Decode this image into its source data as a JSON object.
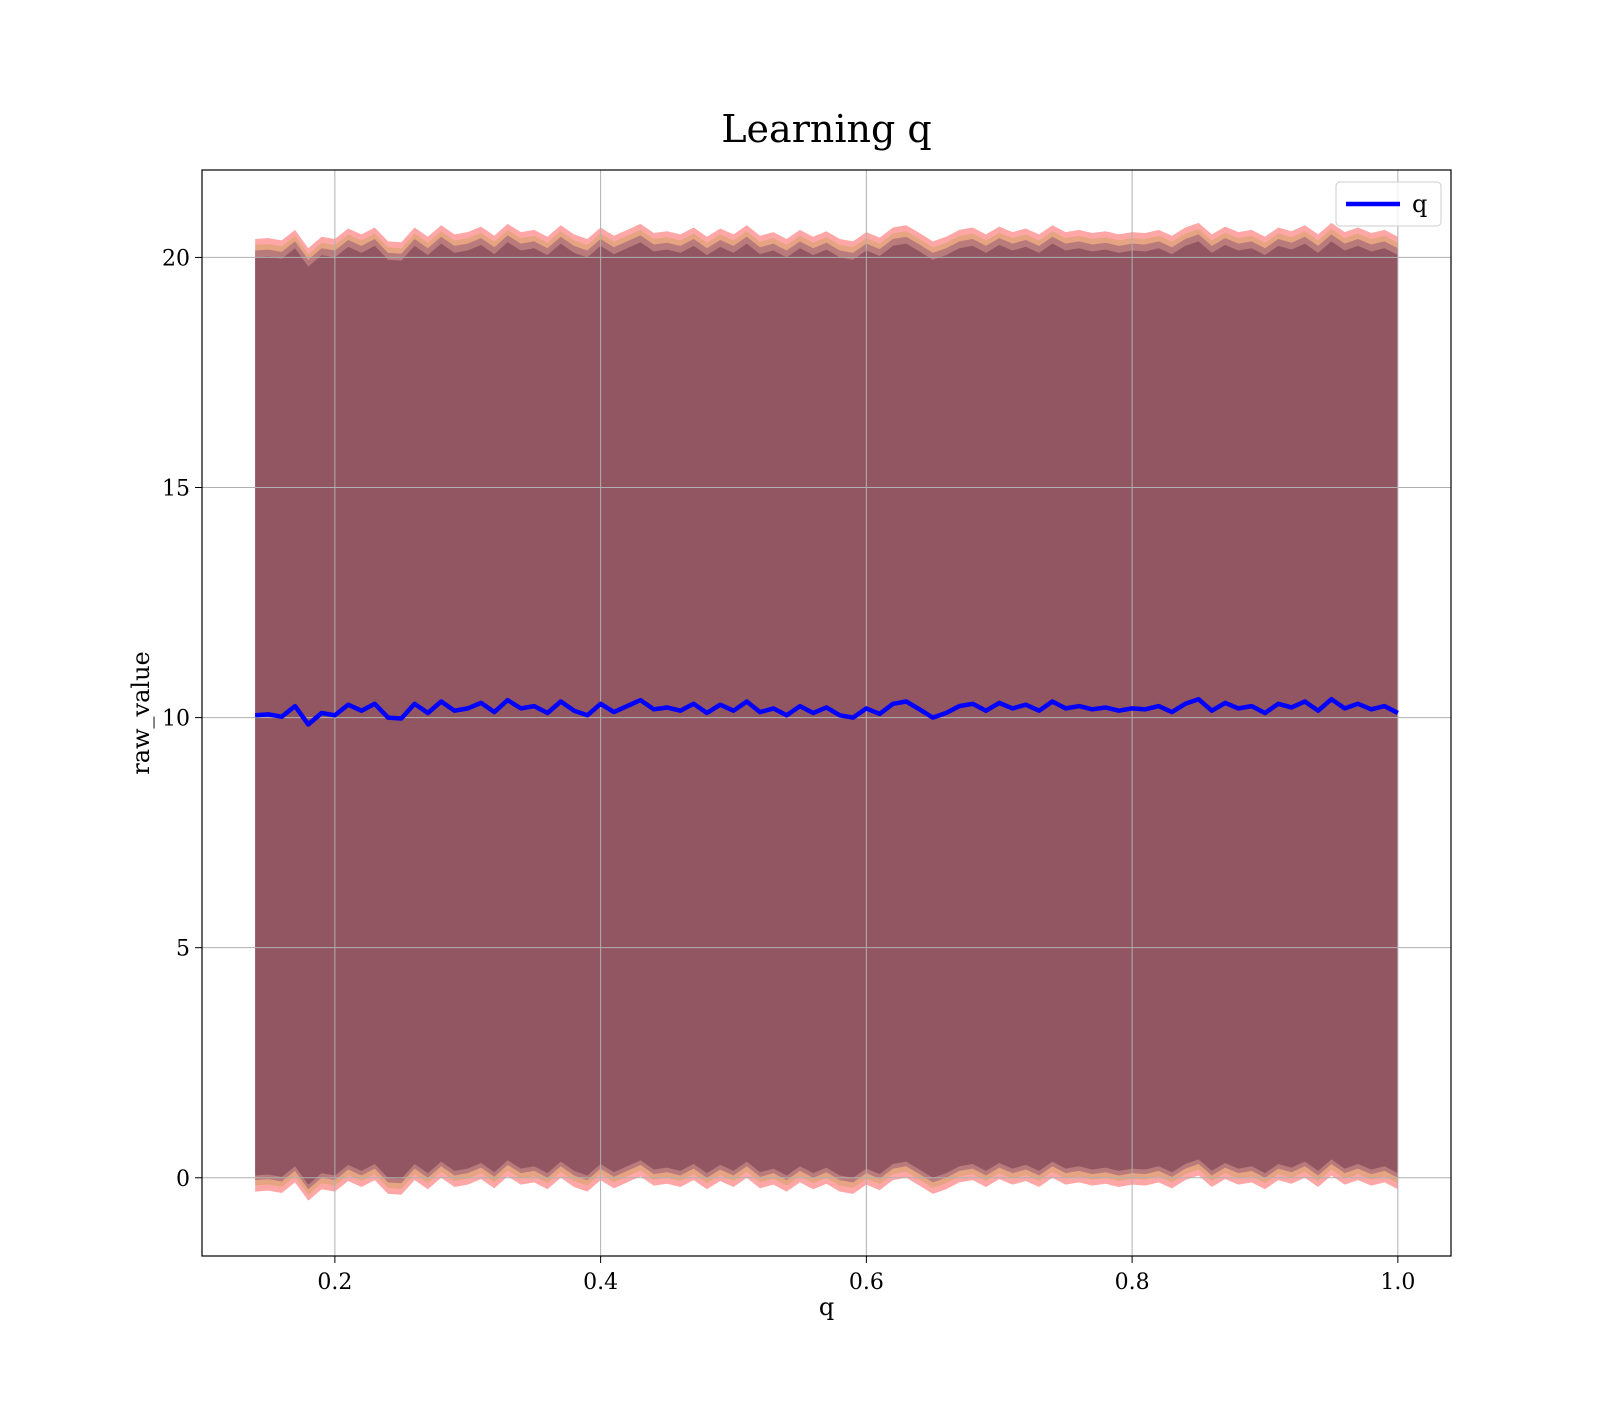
{
  "chart_data": {
    "type": "line",
    "title": "Learning q",
    "xlabel": "q",
    "ylabel": "raw_value",
    "xlim": [
      0.1,
      1.04
    ],
    "ylim": [
      -1.7,
      21.9
    ],
    "grid": true,
    "x_ticks": [
      0.2,
      0.4,
      0.6,
      0.8,
      1.0
    ],
    "x_tick_labels": [
      "0.2",
      "0.4",
      "0.6",
      "0.8",
      "1.0"
    ],
    "y_ticks": [
      0,
      5,
      10,
      15,
      20
    ],
    "y_tick_labels": [
      "0",
      "5",
      "10",
      "15",
      "20"
    ],
    "legend": {
      "position": "top-right",
      "entries": [
        "q"
      ]
    },
    "series": [
      {
        "name": "q",
        "color": "#0000ff",
        "x": [
          0.14,
          0.15,
          0.16,
          0.17,
          0.18,
          0.19,
          0.2,
          0.21,
          0.22,
          0.23,
          0.24,
          0.25,
          0.26,
          0.27,
          0.28,
          0.29,
          0.3,
          0.31,
          0.32,
          0.33,
          0.34,
          0.35,
          0.36,
          0.37,
          0.38,
          0.39,
          0.4,
          0.41,
          0.42,
          0.43,
          0.44,
          0.45,
          0.46,
          0.47,
          0.48,
          0.49,
          0.5,
          0.51,
          0.52,
          0.53,
          0.54,
          0.55,
          0.56,
          0.57,
          0.58,
          0.59,
          0.6,
          0.61,
          0.62,
          0.63,
          0.64,
          0.65,
          0.66,
          0.67,
          0.68,
          0.69,
          0.7,
          0.71,
          0.72,
          0.73,
          0.74,
          0.75,
          0.76,
          0.77,
          0.78,
          0.79,
          0.8,
          0.81,
          0.82,
          0.83,
          0.84,
          0.85,
          0.86,
          0.87,
          0.88,
          0.89,
          0.9,
          0.91,
          0.92,
          0.93,
          0.94,
          0.95,
          0.96,
          0.97,
          0.98,
          0.99,
          1.0
        ],
        "y": [
          10.05,
          10.07,
          10.02,
          10.25,
          9.85,
          10.1,
          10.05,
          10.28,
          10.15,
          10.3,
          10.0,
          9.98,
          10.3,
          10.1,
          10.35,
          10.15,
          10.2,
          10.32,
          10.12,
          10.38,
          10.2,
          10.25,
          10.1,
          10.35,
          10.15,
          10.05,
          10.3,
          10.12,
          10.25,
          10.38,
          10.18,
          10.22,
          10.15,
          10.3,
          10.1,
          10.28,
          10.15,
          10.35,
          10.12,
          10.2,
          10.05,
          10.25,
          10.1,
          10.22,
          10.05,
          10.0,
          10.2,
          10.08,
          10.3,
          10.35,
          10.18,
          10.0,
          10.1,
          10.25,
          10.3,
          10.15,
          10.32,
          10.2,
          10.28,
          10.15,
          10.35,
          10.2,
          10.25,
          10.18,
          10.22,
          10.15,
          10.2,
          10.18,
          10.25,
          10.12,
          10.3,
          10.4,
          10.15,
          10.32,
          10.2,
          10.25,
          10.1,
          10.3,
          10.22,
          10.35,
          10.15,
          10.4,
          10.2,
          10.3,
          10.18,
          10.25,
          10.1
        ]
      }
    ],
    "bands": [
      {
        "color": "#ff0000",
        "opacity": 0.35,
        "center": "series_q",
        "half_width_low": 10.35,
        "half_width_high": 10.35
      },
      {
        "color": "#bba040",
        "opacity": 0.35,
        "center": "series_q",
        "half_width_low": 10.22,
        "half_width_high": 10.22
      },
      {
        "color": "#8a4f72",
        "opacity": 0.5,
        "center": "series_q",
        "half_width_low": 10.1,
        "half_width_high": 10.1
      },
      {
        "color": "#73364f",
        "opacity": 0.55,
        "center": "series_q",
        "half_width_low": 10.0,
        "half_width_high": 9.95
      }
    ]
  }
}
